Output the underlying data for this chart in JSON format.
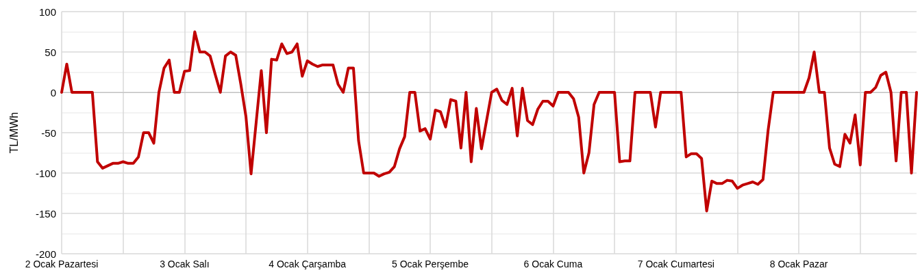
{
  "chart_data": {
    "type": "line",
    "ylabel": "TL/MWh",
    "categories": [
      "2 Ocak Pazartesi",
      null,
      null,
      null,
      null,
      null,
      null,
      null,
      null,
      null,
      null,
      null,
      null,
      null,
      null,
      null,
      null,
      null,
      null,
      null,
      null,
      null,
      null,
      null,
      "3 Ocak Salı",
      null,
      null,
      null,
      null,
      null,
      null,
      null,
      null,
      null,
      null,
      null,
      null,
      null,
      null,
      null,
      null,
      null,
      null,
      null,
      null,
      null,
      null,
      null,
      "4 Ocak Çarşamba",
      null,
      null,
      null,
      null,
      null,
      null,
      null,
      null,
      null,
      null,
      null,
      null,
      null,
      null,
      null,
      null,
      null,
      null,
      null,
      null,
      null,
      null,
      null,
      "5 Ocak Perşembe",
      null,
      null,
      null,
      null,
      null,
      null,
      null,
      null,
      null,
      null,
      null,
      null,
      null,
      null,
      null,
      null,
      null,
      null,
      null,
      null,
      null,
      null,
      null,
      "6 Ocak Cuma",
      null,
      null,
      null,
      null,
      null,
      null,
      null,
      null,
      null,
      null,
      null,
      null,
      null,
      null,
      null,
      null,
      null,
      null,
      null,
      null,
      null,
      null,
      null,
      "7 Ocak Cumartesi",
      null,
      null,
      null,
      null,
      null,
      null,
      null,
      null,
      null,
      null,
      null,
      null,
      null,
      null,
      null,
      null,
      null,
      null,
      null,
      null,
      null,
      null,
      null,
      "8 Ocak Pazar",
      null,
      null,
      null,
      null,
      null,
      null,
      null,
      null,
      null,
      null,
      null,
      null,
      null,
      null,
      null,
      null,
      null,
      null,
      null,
      null,
      null,
      null,
      null
    ],
    "series": [
      {
        "color": "#c00000",
        "values": [
          0,
          35,
          0,
          0,
          0,
          0,
          0,
          -86,
          -94,
          -91,
          -88,
          -88,
          -86,
          -88,
          -88,
          -80,
          -50,
          -50,
          -63,
          0,
          30,
          40,
          0,
          0,
          26,
          27,
          75,
          50,
          50,
          45,
          22,
          0,
          45,
          50,
          46,
          10,
          -30,
          -101,
          -37,
          27,
          -50,
          41,
          40,
          60,
          48,
          50,
          60,
          20,
          39,
          35,
          32,
          34,
          34,
          34,
          10,
          0,
          30,
          30,
          -60,
          -100,
          -100,
          -100,
          -104,
          -101,
          -99,
          -92,
          -70,
          -55,
          0,
          0,
          -48,
          -45,
          -58,
          -22,
          -24,
          -43,
          -9,
          -11,
          -69,
          0,
          -86,
          -20,
          -70,
          -35,
          0,
          4,
          -10,
          -15,
          5,
          -54,
          5,
          -35,
          -40,
          -21,
          -11,
          -11,
          -17,
          0,
          0,
          0,
          -8,
          -31,
          -100,
          -75,
          -15,
          0,
          0,
          0,
          0,
          -86,
          -85,
          -85,
          0,
          0,
          0,
          0,
          -43,
          0,
          0,
          0,
          0,
          0,
          -80,
          -76,
          -76,
          -82,
          -147,
          -110,
          -113,
          -113,
          -109,
          -110,
          -119,
          -115,
          -113,
          -111,
          -114,
          -108,
          -47,
          0,
          0,
          0,
          0,
          0,
          0,
          0,
          18,
          50,
          0,
          0,
          -69,
          -89,
          -92,
          -52,
          -63,
          -28,
          -90,
          0,
          0,
          6,
          21,
          25,
          0,
          -85,
          0,
          0,
          -100,
          0
        ]
      }
    ],
    "ylim": [
      -200,
      100
    ],
    "yticks": [
      -200,
      -150,
      -100,
      -50,
      0,
      50,
      100
    ],
    "grid": true,
    "marker": "none",
    "line_style": "solid"
  }
}
